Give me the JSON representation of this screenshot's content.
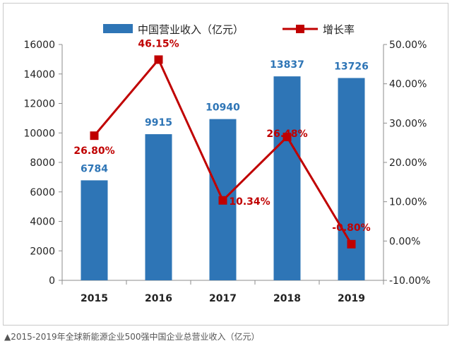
{
  "chart_data": {
    "type": "bar",
    "categories": [
      "2015",
      "2016",
      "2017",
      "2018",
      "2019"
    ],
    "series": [
      {
        "name": "中国营业收入（亿元）",
        "type": "bar",
        "axis": "left",
        "values": [
          6784,
          9915,
          10940,
          13837,
          13726
        ],
        "labels": [
          "6784",
          "9915",
          "10940",
          "13837",
          "13726"
        ]
      },
      {
        "name": "增长率",
        "type": "line",
        "axis": "right",
        "values": [
          26.8,
          46.15,
          10.34,
          26.48,
          -0.8
        ],
        "labels": [
          "26.80%",
          "46.15%",
          "10.34%",
          "26.48%",
          "-0.80%"
        ]
      }
    ],
    "ylim_left": [
      0,
      16000
    ],
    "yticks_left": [
      "0",
      "2000",
      "4000",
      "6000",
      "8000",
      "10000",
      "12000",
      "14000",
      "16000"
    ],
    "ylim_right": [
      -10,
      50
    ],
    "yticks_right": [
      "-10.00%",
      "0.00%",
      "10.00%",
      "20.00%",
      "30.00%",
      "40.00%",
      "50.00%"
    ],
    "legend_position": "top-center",
    "grid": false,
    "colors": {
      "bar": "#2e75b6",
      "bar_label": "#2e75b6",
      "line": "#c00000",
      "line_label": "#c00000"
    }
  },
  "caption": "▲2015-2019年全球新能源企业500强中国企业总营业收入（亿元）"
}
